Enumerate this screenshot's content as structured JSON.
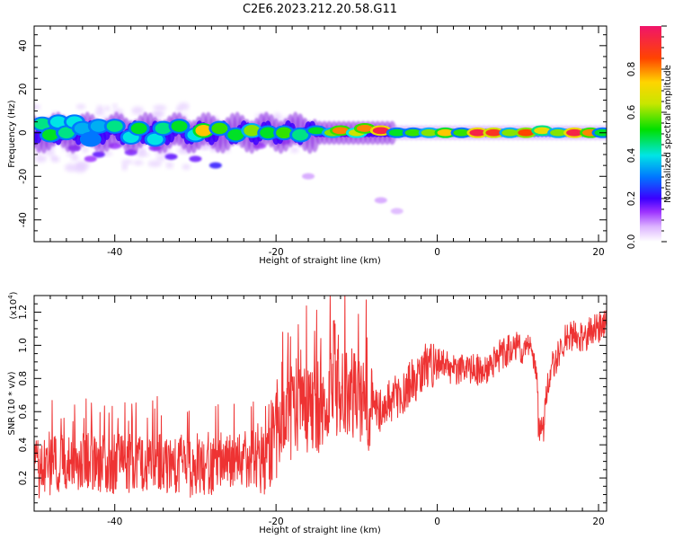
{
  "title": "C2E6.2023.212.20.58.G11",
  "colors": {
    "line": "#ee3333",
    "axis": "#000000"
  },
  "chart_data": [
    {
      "type": "heatmap",
      "xlabel": "Height of straight line (km)",
      "ylabel": "Frequency (Hz)",
      "xlim": [
        -50,
        21
      ],
      "ylim": [
        -50,
        49
      ],
      "xticks": [
        -40,
        -20,
        0,
        20
      ],
      "xtick_labels": [
        "-40",
        "-20",
        "0",
        "20"
      ],
      "yticks": [
        -40,
        -20,
        0,
        20,
        40
      ],
      "ytick_labels": [
        "-40",
        "-20",
        "0",
        "20",
        "40"
      ],
      "description_band": "Main energy band along 0 Hz, broad and patchy for heights below about -20 km, narrowing toward 0 km and above",
      "band_segments": [
        {
          "x": -49,
          "y": 4,
          "z": 0.45
        },
        {
          "x": -48,
          "y": -1,
          "z": 0.5
        },
        {
          "x": -47,
          "y": 5,
          "z": 0.4
        },
        {
          "x": -46,
          "y": 0,
          "z": 0.45
        },
        {
          "x": -45,
          "y": 5,
          "z": 0.4
        },
        {
          "x": -44,
          "y": 2,
          "z": 0.35
        },
        {
          "x": -43,
          "y": -3,
          "z": 0.3
        },
        {
          "x": -42,
          "y": 3,
          "z": 0.35
        },
        {
          "x": -40,
          "y": 3,
          "z": 0.45
        },
        {
          "x": -38,
          "y": -2,
          "z": 0.4
        },
        {
          "x": -37,
          "y": 2,
          "z": 0.5
        },
        {
          "x": -35,
          "y": -3,
          "z": 0.4
        },
        {
          "x": -34,
          "y": 2,
          "z": 0.45
        },
        {
          "x": -32,
          "y": 3,
          "z": 0.5
        },
        {
          "x": -30,
          "y": -1,
          "z": 0.4
        },
        {
          "x": -29,
          "y": 1,
          "z": 0.75
        },
        {
          "x": -27,
          "y": 2,
          "z": 0.55
        },
        {
          "x": -25,
          "y": -1,
          "z": 0.5
        },
        {
          "x": -23,
          "y": 1,
          "z": 0.6
        },
        {
          "x": -21,
          "y": 0,
          "z": 0.5
        },
        {
          "x": -19,
          "y": 0,
          "z": 0.55
        },
        {
          "x": -17,
          "y": -1,
          "z": 0.45
        },
        {
          "x": -15,
          "y": 1,
          "z": 0.5
        },
        {
          "x": -13,
          "y": 0,
          "z": 0.6
        },
        {
          "x": -12,
          "y": 1,
          "z": 0.8
        },
        {
          "x": -10,
          "y": 0,
          "z": 0.65
        },
        {
          "x": -9,
          "y": 2,
          "z": 0.8
        },
        {
          "x": -7,
          "y": 1,
          "z": 0.95
        },
        {
          "x": -5,
          "y": 0,
          "z": 0.5
        },
        {
          "x": -3,
          "y": 0,
          "z": 0.55
        },
        {
          "x": -1,
          "y": 0,
          "z": 0.6
        },
        {
          "x": 1,
          "y": 0,
          "z": 0.75
        },
        {
          "x": 3,
          "y": 0,
          "z": 0.55
        },
        {
          "x": 5,
          "y": 0,
          "z": 0.95
        },
        {
          "x": 7,
          "y": 0,
          "z": 0.9
        },
        {
          "x": 9,
          "y": 0,
          "z": 0.6
        },
        {
          "x": 11,
          "y": 0,
          "z": 0.85
        },
        {
          "x": 13,
          "y": 1,
          "z": 0.7
        },
        {
          "x": 15,
          "y": 0,
          "z": 0.6
        },
        {
          "x": 17,
          "y": 0,
          "z": 0.95
        },
        {
          "x": 19,
          "y": 0,
          "z": 0.8
        },
        {
          "x": 20.5,
          "y": 0,
          "z": 0.5
        }
      ],
      "colorbar": {
        "label": "Normalized spectral amplitude",
        "range": [
          0,
          1
        ],
        "ticks": [
          "0.0",
          "0.2",
          "0.4",
          "0.6",
          "0.8"
        ]
      }
    },
    {
      "type": "line",
      "xlabel": "Height of straight line (km)",
      "ylabel": "SNR (10 * v/v)",
      "scale_note": "(x10",
      "scale_exp": "4",
      "scale_close": ")",
      "xlim": [
        -50,
        21
      ],
      "ylim": [
        0.0,
        1.3
      ],
      "xticks": [
        -40,
        -20,
        0,
        20
      ],
      "xtick_labels": [
        "-40",
        "-20",
        "0",
        "20"
      ],
      "yticks": [
        0.2,
        0.4,
        0.6,
        0.8,
        1.0,
        1.2
      ],
      "ytick_labels": [
        "0.2",
        "0.4",
        "0.6",
        "0.8",
        "1.0",
        "1.2"
      ],
      "series": [
        {
          "x": [
            -50,
            -45,
            -40,
            -35,
            -30,
            -25,
            -22,
            -20,
            -18,
            -16,
            -14,
            -12,
            -10,
            -8,
            -6,
            -4,
            -2,
            0,
            2,
            4,
            6,
            8,
            10,
            12,
            13,
            14,
            16,
            18,
            20,
            21
          ],
          "y": [
            0.25,
            0.3,
            0.28,
            0.3,
            0.25,
            0.3,
            0.32,
            0.45,
            0.55,
            0.6,
            0.65,
            0.75,
            0.7,
            0.6,
            0.65,
            0.72,
            0.85,
            0.9,
            0.85,
            0.85,
            0.85,
            0.95,
            1.0,
            0.95,
            0.55,
            0.85,
            1.05,
            1.05,
            1.1,
            1.15
          ]
        }
      ]
    }
  ]
}
